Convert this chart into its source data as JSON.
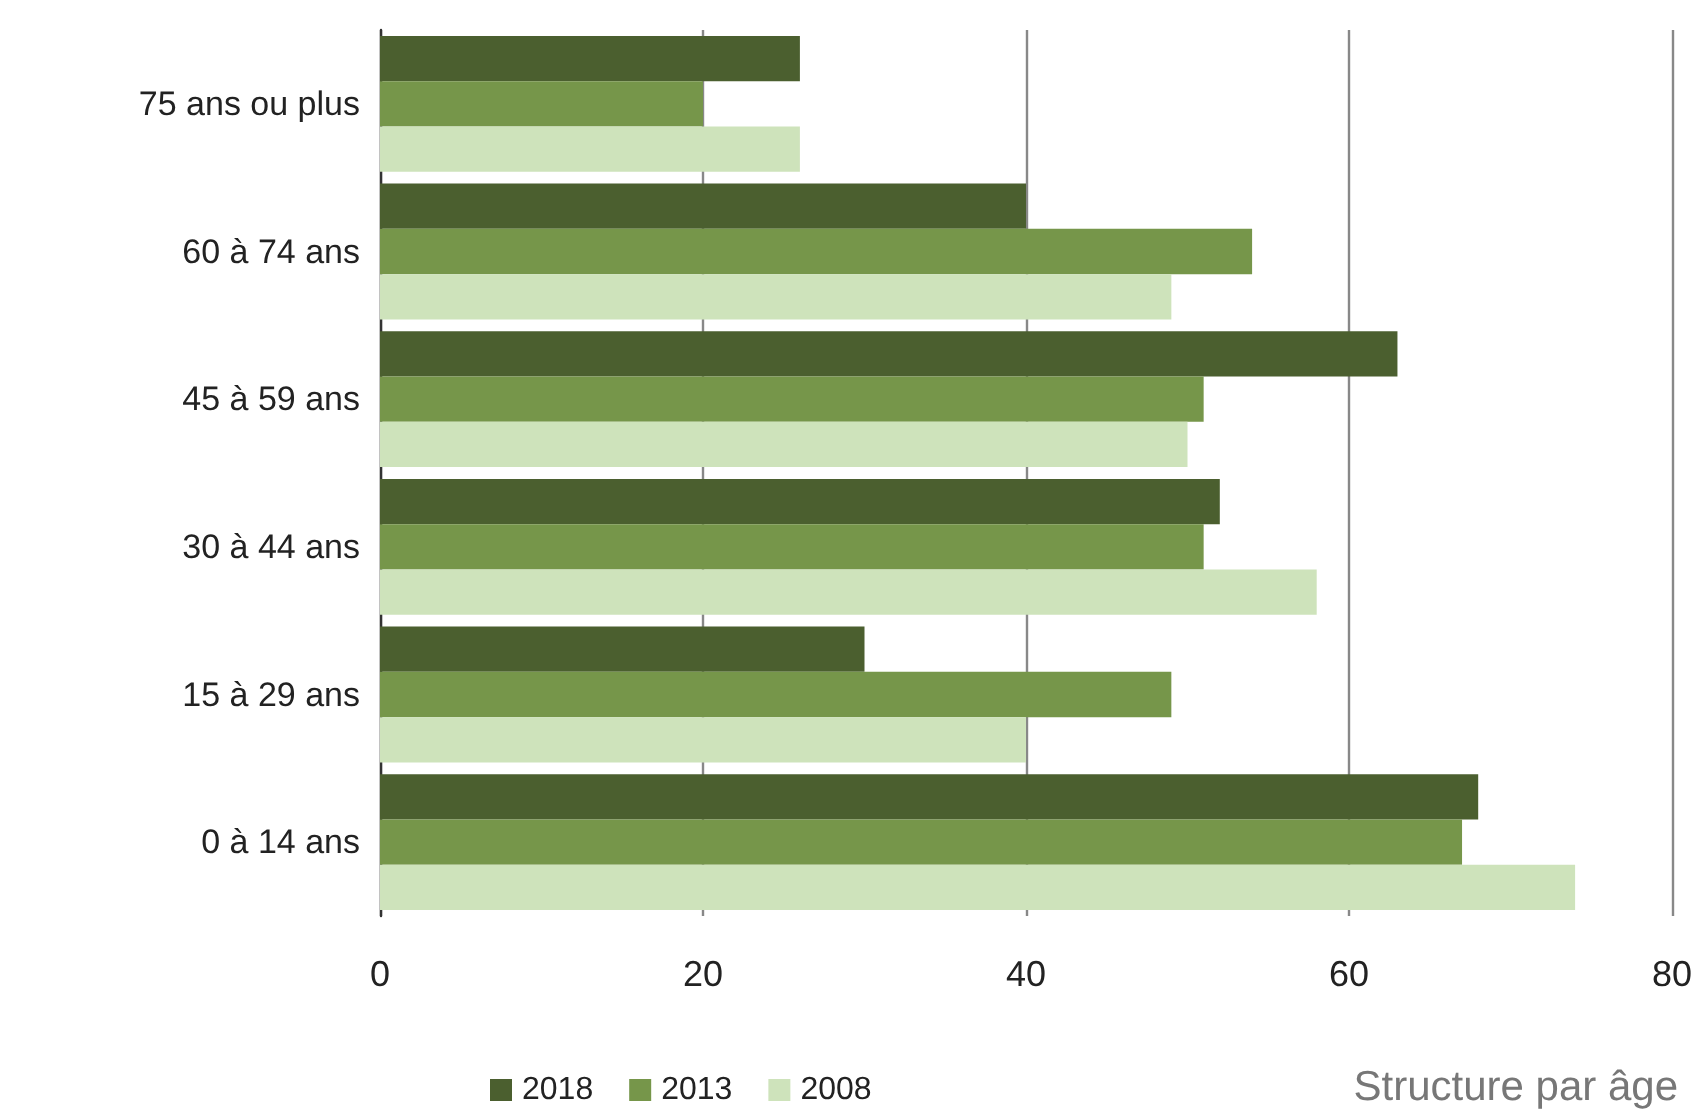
{
  "chart_data": {
    "type": "bar",
    "orientation": "horizontal",
    "categories": [
      "75 ans ou plus",
      "60 à 74 ans",
      "45 à 59 ans",
      "30 à 44 ans",
      "15 à 29 ans",
      "0 à 14 ans"
    ],
    "series": [
      {
        "name": "2018",
        "color": "#4b5f2f",
        "values": [
          26,
          40,
          63,
          52,
          30,
          68
        ]
      },
      {
        "name": "2013",
        "color": "#76964a",
        "values": [
          20,
          54,
          51,
          51,
          49,
          67
        ]
      },
      {
        "name": "2008",
        "color": "#cee3bb",
        "values": [
          26,
          49,
          50,
          58,
          40,
          74
        ]
      }
    ],
    "xlim": [
      0,
      80
    ],
    "xticks": [
      0,
      20,
      40,
      60,
      80
    ],
    "grid": "x",
    "legend": "bottom left",
    "annotations": [
      "Structure par âge"
    ]
  }
}
